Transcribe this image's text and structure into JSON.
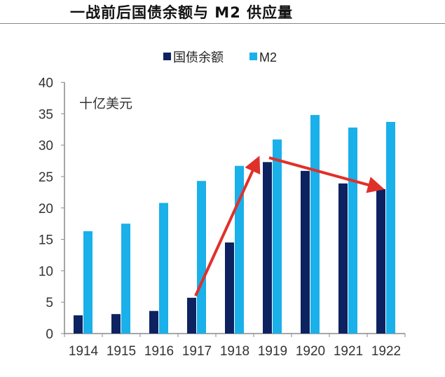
{
  "chart_data": {
    "type": "bar",
    "title": "一战前后国债余额与 M2 供应量",
    "unit_label": "十亿美元",
    "categories": [
      "1914",
      "1915",
      "1916",
      "1917",
      "1918",
      "1919",
      "1920",
      "1921",
      "1922"
    ],
    "series": [
      {
        "name": "国债余额",
        "color": "#0d2260",
        "values": [
          2.9,
          3.1,
          3.6,
          5.7,
          14.5,
          27.3,
          25.9,
          23.9,
          23.0
        ]
      },
      {
        "name": "M2",
        "color": "#1ab0ea",
        "values": [
          16.3,
          17.5,
          20.8,
          24.3,
          26.7,
          30.9,
          34.8,
          32.8,
          33.7
        ]
      }
    ],
    "ylim": [
      0,
      40
    ],
    "yticks": [
      0,
      5,
      10,
      15,
      20,
      25,
      30,
      35,
      40
    ],
    "grid": false,
    "legend_position": "top",
    "annotations": [
      {
        "type": "arrow",
        "color": "#e0302a",
        "from": [
          "1917",
          6
        ],
        "to": [
          "1919",
          27.5
        ]
      },
      {
        "type": "arrow",
        "color": "#e0302a",
        "from": [
          "1919",
          28
        ],
        "to": [
          "1922",
          23.2
        ]
      }
    ]
  }
}
